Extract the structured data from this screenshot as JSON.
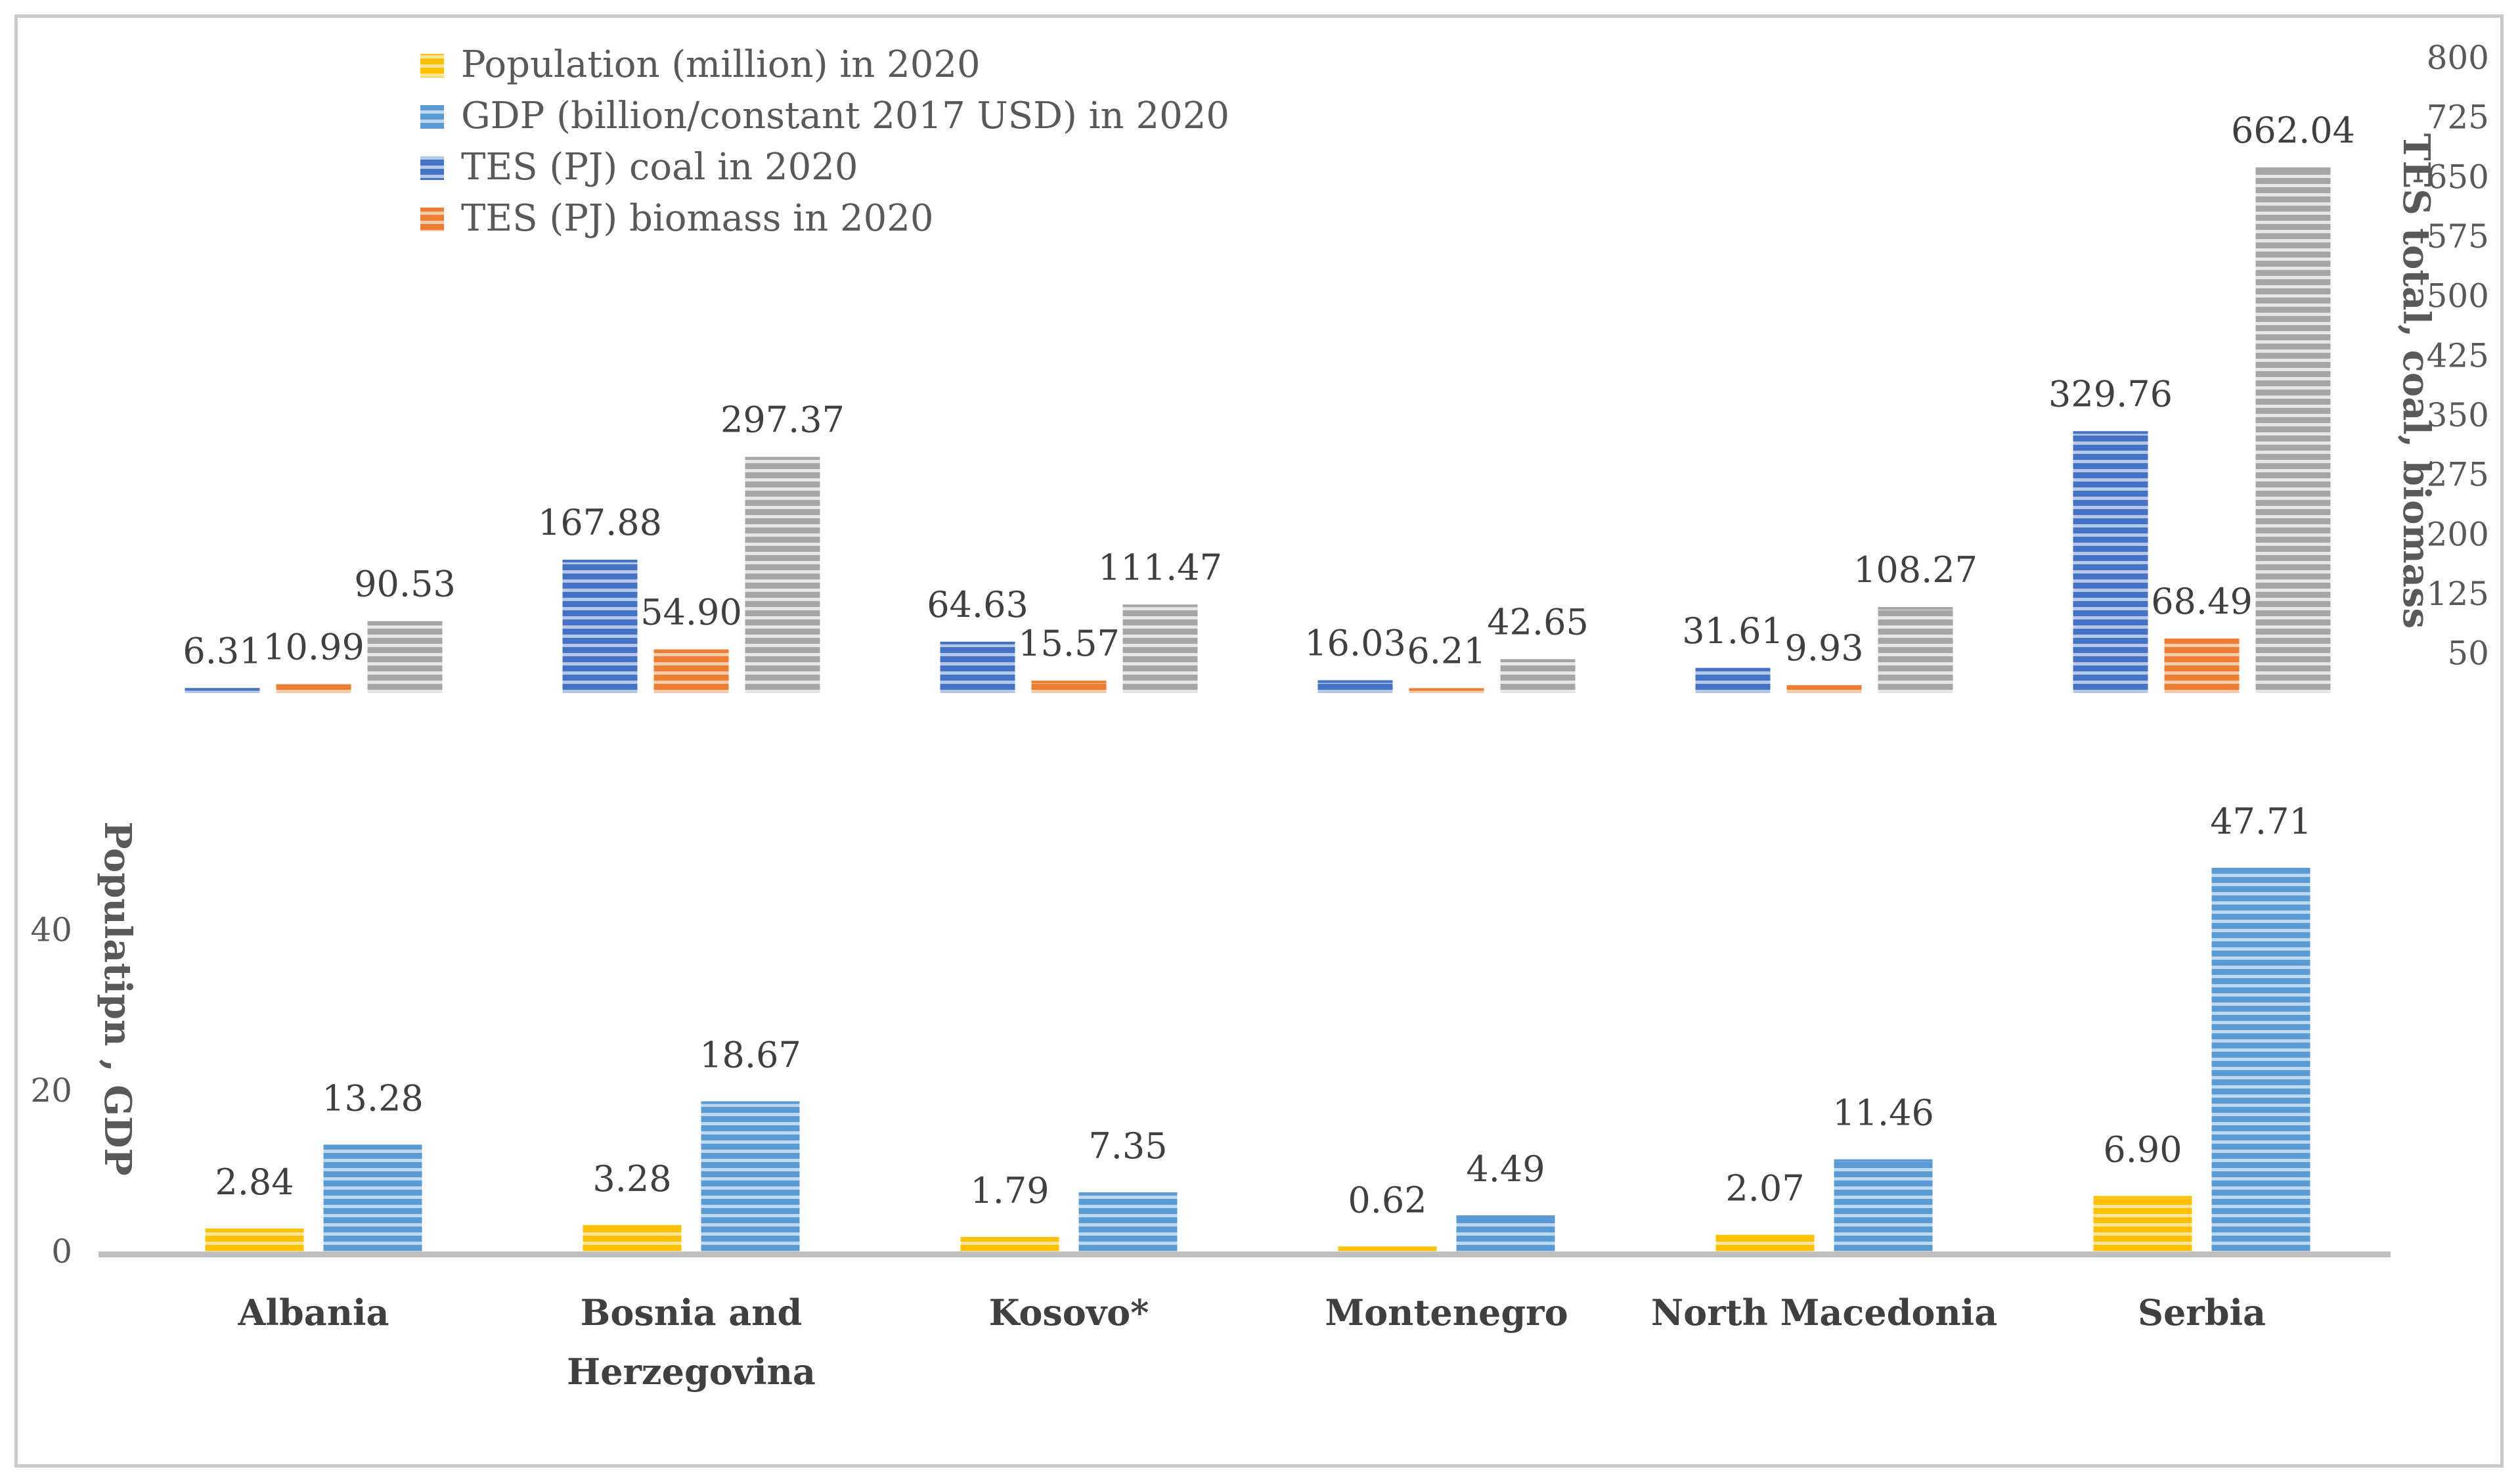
{
  "chart_data": [
    {
      "type": "bar",
      "panel": "top",
      "categories": [
        "Albania",
        "Bosnia and Herzegovina",
        "Kosovo*",
        "Montenegro",
        "North Macedonia",
        "Serbia"
      ],
      "series": [
        {
          "name": "TES (PJ) coal in 2020",
          "values": [
            6.31,
            167.88,
            64.63,
            16.03,
            31.61,
            329.76
          ],
          "labels": [
            "6.31",
            "167.88",
            "64.63",
            "16.03",
            "31.61",
            "329.76"
          ]
        },
        {
          "name": "TES (PJ) biomass in 2020",
          "values": [
            10.99,
            54.9,
            15.57,
            6.21,
            9.93,
            68.49
          ],
          "labels": [
            "10.99",
            "54.90",
            "15.57",
            "6.21",
            "9.93",
            "68.49"
          ]
        },
        {
          "name": "",
          "values": [
            90.53,
            297.37,
            111.47,
            42.65,
            108.27,
            662.04
          ],
          "labels": [
            "90.53",
            "297.37",
            "111.47",
            "42.65",
            "108.27",
            "662.04"
          ]
        }
      ],
      "ylabel": "TES total, coal, biomass",
      "ylim": [
        0,
        800
      ],
      "yticks": [
        "50",
        "125",
        "200",
        "275",
        "350",
        "425",
        "500",
        "575",
        "650",
        "725",
        "800"
      ],
      "axis_side": "right",
      "grid": false
    },
    {
      "type": "bar",
      "panel": "bottom",
      "categories": [
        "Albania",
        "Bosnia and Herzegovina",
        "Kosovo*",
        "Montenegro",
        "North Macedonia",
        "Serbia"
      ],
      "series": [
        {
          "name": "Population (million) in 2020",
          "values": [
            2.84,
            3.28,
            1.79,
            0.62,
            2.07,
            6.9
          ],
          "labels": [
            "2.84",
            "3.28",
            "1.79",
            "0.62",
            "2.07",
            "6.90"
          ]
        },
        {
          "name": "GDP (billion/constant 2017 USD) in 2020",
          "values": [
            13.28,
            18.67,
            7.35,
            4.49,
            11.46,
            47.71
          ],
          "labels": [
            "13.28",
            "18.67",
            "7.35",
            "4.49",
            "11.46",
            "47.71"
          ]
        }
      ],
      "ylabel": "Populatipn , GDP",
      "ylim": [
        0,
        50
      ],
      "yticks": [
        "0",
        "20",
        "40"
      ],
      "axis_side": "left",
      "grid": false
    }
  ],
  "category_labels": [
    [
      "Albania"
    ],
    [
      "Bosnia and",
      "Herzegovina"
    ],
    [
      "Kosovo*"
    ],
    [
      "Montenegro"
    ],
    [
      "North Macedonia"
    ],
    [
      "Serbia"
    ]
  ],
  "legend": {
    "placement": "top-left",
    "items": [
      {
        "label": "Population (million) in 2020",
        "color": "#ffc000"
      },
      {
        "label": "GDP (billion/constant 2017 USD) in 2020",
        "color": "#5b9bd5"
      },
      {
        "label": "TES (PJ) coal in 2020",
        "color": "#4472c4"
      },
      {
        "label": "TES (PJ) biomass in 2020",
        "color": "#ed7d31"
      }
    ]
  },
  "colors": {
    "population": "#ffc000",
    "gdp": "#5b9bd5",
    "coal": "#4472c4",
    "biomass": "#ed7d31",
    "total": "#a5a5a5",
    "axis": "#bfbfbf"
  }
}
